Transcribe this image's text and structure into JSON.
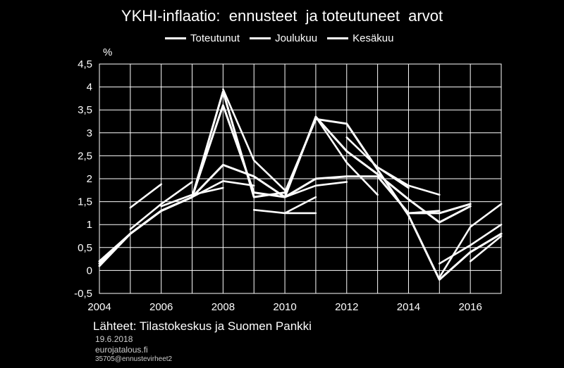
{
  "title": "YKHI-inflaatio:  ennusteet  ja toteutuneet  arvot",
  "footer": {
    "source": "Lähteet: Tilastokeskus ja Suomen Pankki",
    "date": "19.6.2018",
    "site": "eurojatalous.fi",
    "code": "35705@ennustevirheet2"
  },
  "chart_data": {
    "type": "line",
    "title": "YKHI-inflaatio:  ennusteet  ja toteutuneet  arvot",
    "ylabel": "%",
    "xlabel": "",
    "xlim": [
      2004,
      2017
    ],
    "ylim": [
      -0.5,
      4.5
    ],
    "yticks": [
      "4,5",
      "4",
      "3,5",
      "3",
      "2,5",
      "2",
      "1,5",
      "1",
      "0,5",
      "0",
      "-0,5"
    ],
    "yticks_values": [
      4.5,
      4,
      3.5,
      3,
      2.5,
      2,
      1.5,
      1,
      0.5,
      0,
      -0.5
    ],
    "xticks": [
      "2004",
      "2006",
      "2008",
      "2010",
      "2012",
      "2014",
      "2016"
    ],
    "xticks_values": [
      2004,
      2006,
      2008,
      2010,
      2012,
      2014,
      2016
    ],
    "grid": true,
    "legend_position": "top",
    "line_color": "#ffffff",
    "series": [
      {
        "name": "Toteutunut",
        "x": [
          2004,
          2005,
          2006,
          2007,
          2008,
          2009,
          2010,
          2011,
          2012,
          2013,
          2014,
          2015,
          2016,
          2017
        ],
        "values": [
          0.1,
          0.8,
          1.3,
          1.6,
          3.9,
          1.6,
          1.7,
          3.3,
          3.2,
          2.2,
          1.2,
          -0.2,
          0.4,
          0.8
        ]
      },
      {
        "name": "Joulukuu",
        "x": [
          2004,
          2005,
          2006,
          2007,
          2008,
          2009,
          2010,
          2011,
          2012,
          2013,
          2014,
          2015,
          2016,
          2017
        ],
        "values": [
          0.2,
          0.8,
          1.3,
          1.6,
          3.6,
          1.7,
          1.6,
          3.35,
          2.6,
          2.1,
          1.55,
          1.05,
          1.4,
          null
        ]
      },
      {
        "name": "Kesäkuu",
        "x": [
          2004,
          2005,
          2006,
          2007,
          2008,
          2009,
          2010,
          2011,
          2012,
          2013,
          2014,
          2015,
          2016,
          2017
        ],
        "values": [
          0.15,
          0.8,
          1.3,
          1.6,
          2.3,
          2.05,
          1.6,
          2.0,
          2.05,
          2.05,
          1.25,
          1.25,
          1.45,
          null
        ]
      }
    ],
    "forecast_paths": [
      {
        "x": [
          2005,
          2006
        ],
        "values": [
          1.37,
          1.88
        ]
      },
      {
        "x": [
          2005,
          2006,
          2007
        ],
        "values": [
          0.9,
          1.45,
          1.93
        ]
      },
      {
        "x": [
          2006,
          2007,
          2008
        ],
        "values": [
          1.4,
          1.65,
          1.8
        ]
      },
      {
        "x": [
          2007,
          2008,
          2009
        ],
        "values": [
          1.6,
          1.95,
          1.85
        ]
      },
      {
        "x": [
          2008,
          2009,
          2010
        ],
        "values": [
          3.95,
          2.4,
          1.75
        ]
      },
      {
        "x": [
          2009,
          2010,
          2011
        ],
        "values": [
          1.32,
          1.25,
          1.6
        ]
      },
      {
        "x": [
          2010,
          2011
        ],
        "values": [
          1.25,
          1.25
        ]
      },
      {
        "x": [
          2010,
          2011,
          2012
        ],
        "values": [
          1.6,
          1.85,
          1.93
        ]
      },
      {
        "x": [
          2011,
          2012,
          2013
        ],
        "values": [
          3.35,
          2.35,
          1.65
        ]
      },
      {
        "x": [
          2012,
          2013,
          2014
        ],
        "values": [
          2.9,
          2.25,
          1.8
        ]
      },
      {
        "x": [
          2013,
          2014,
          2015
        ],
        "values": [
          2.25,
          1.85,
          1.65
        ]
      },
      {
        "x": [
          2014,
          2015
        ],
        "values": [
          1.25,
          1.3
        ]
      },
      {
        "x": [
          2015,
          2016,
          2017
        ],
        "values": [
          0.15,
          0.55,
          1.0
        ]
      },
      {
        "x": [
          2015,
          2016,
          2017
        ],
        "values": [
          -0.15,
          0.95,
          1.45
        ]
      },
      {
        "x": [
          2016,
          2017
        ],
        "values": [
          0.2,
          0.75
        ]
      }
    ]
  }
}
